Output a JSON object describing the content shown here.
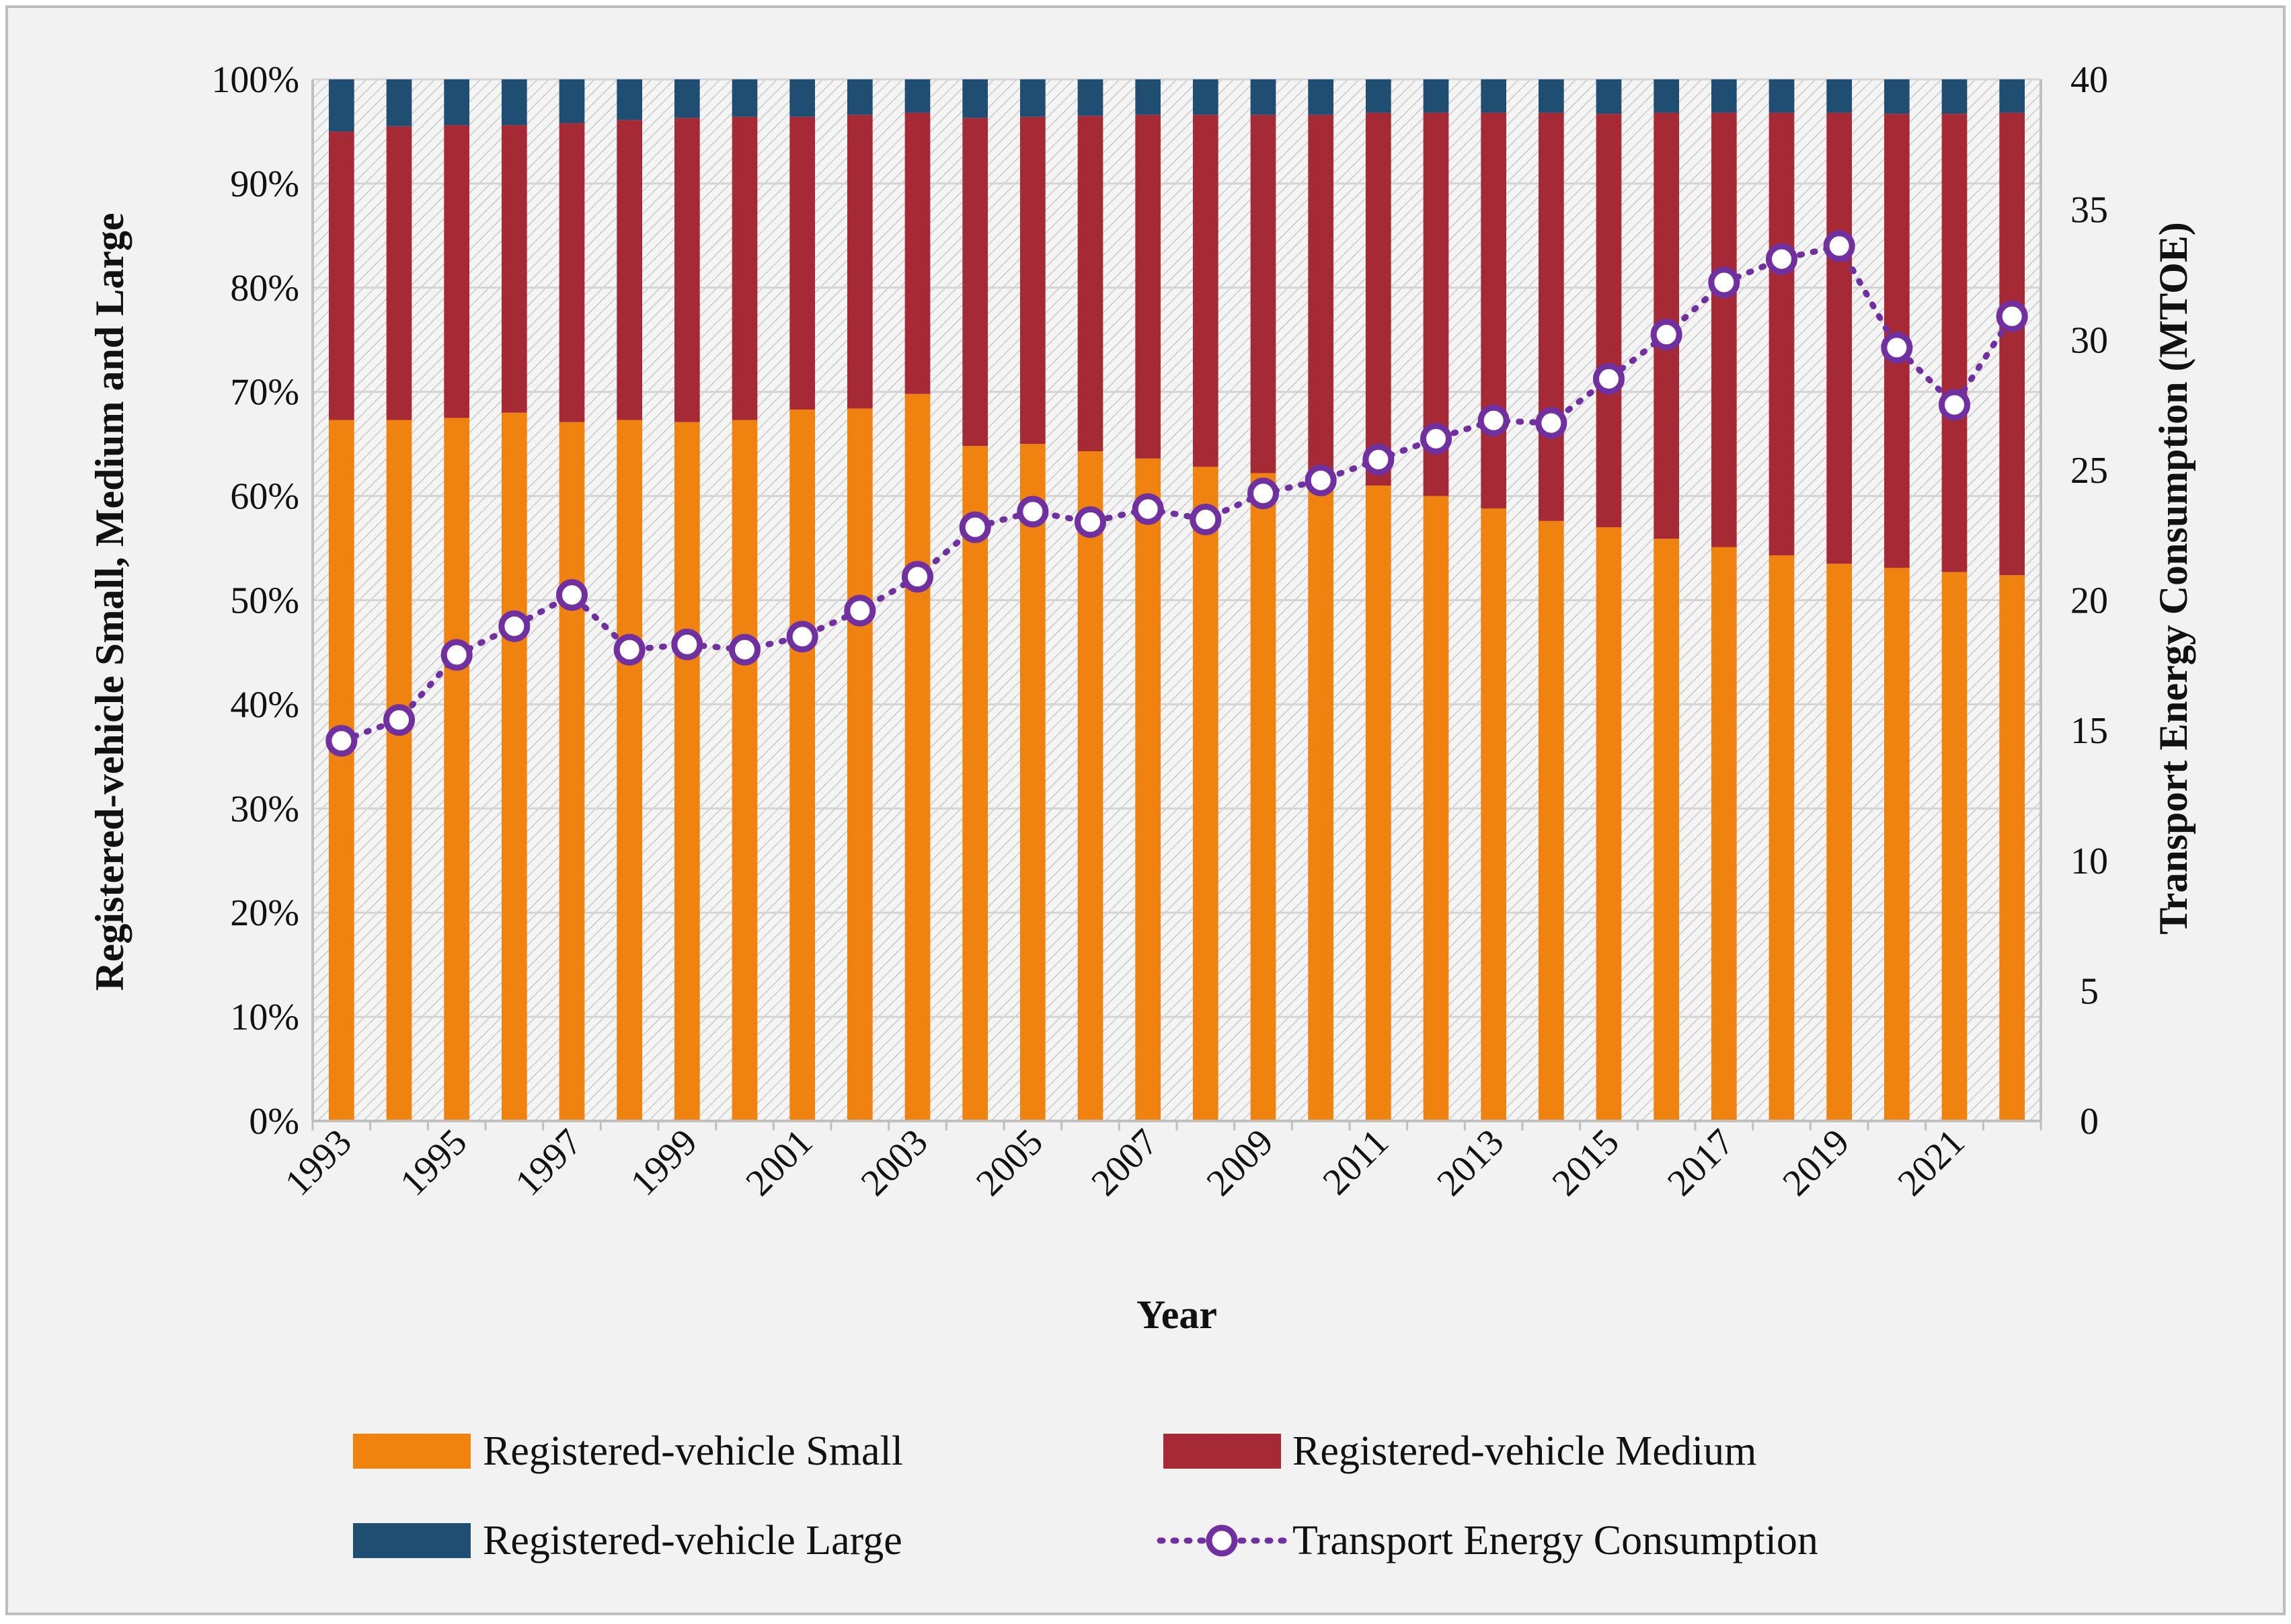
{
  "chart_data": {
    "type": "bar",
    "stacked": true,
    "title": "",
    "xlabel": "Year",
    "ylabel": "Registered-vehicle Small, Medium and Large",
    "y2label": "Transport Energy Consumption (MTOE)",
    "ylim": [
      0,
      100
    ],
    "y2lim": [
      0,
      40
    ],
    "y_ticks": [
      "0%",
      "10%",
      "20%",
      "30%",
      "40%",
      "50%",
      "60%",
      "70%",
      "80%",
      "90%",
      "100%"
    ],
    "y2_ticks": [
      "0",
      "5",
      "10",
      "15",
      "20",
      "25",
      "30",
      "35",
      "40"
    ],
    "x_tick_labels": [
      "1993",
      "1995",
      "1997",
      "1999",
      "2001",
      "2003",
      "2005",
      "2007",
      "2009",
      "2011",
      "2013",
      "2015",
      "2017",
      "2019",
      "2021"
    ],
    "categories": [
      "1993",
      "1994",
      "1995",
      "1996",
      "1997",
      "1998",
      "1999",
      "2000",
      "2001",
      "2002",
      "2003",
      "2004",
      "2005",
      "2006",
      "2007",
      "2008",
      "2009",
      "2010",
      "2011",
      "2012",
      "2013",
      "2014",
      "2015",
      "2016",
      "2017",
      "2018",
      "2019",
      "2020",
      "2021",
      "2022"
    ],
    "series": [
      {
        "name": "Registered-vehicle Small",
        "axis": "left",
        "kind": "bar",
        "color": "#F0820F",
        "values": [
          67.3,
          67.3,
          67.5,
          68.0,
          67.1,
          67.3,
          67.1,
          67.3,
          68.3,
          68.4,
          69.8,
          64.8,
          65.0,
          64.3,
          63.6,
          62.8,
          62.2,
          61.5,
          61.0,
          60.0,
          58.8,
          57.6,
          57.0,
          55.9,
          55.1,
          54.3,
          53.5,
          53.1,
          52.7,
          52.4
        ]
      },
      {
        "name": "Registered-vehicle Medium",
        "axis": "left",
        "kind": "bar",
        "color": "#A52A35",
        "values": [
          27.7,
          28.2,
          28.1,
          27.6,
          28.7,
          28.8,
          29.2,
          29.1,
          28.1,
          28.2,
          27.0,
          31.5,
          31.4,
          32.2,
          33.0,
          33.8,
          34.4,
          35.1,
          35.8,
          36.8,
          38.0,
          39.2,
          39.7,
          40.9,
          41.7,
          42.5,
          43.3,
          43.6,
          44.0,
          44.4
        ]
      },
      {
        "name": "Registered-vehicle Large",
        "axis": "left",
        "kind": "bar",
        "color": "#1F4E72",
        "values": [
          5.0,
          4.5,
          4.4,
          4.4,
          4.2,
          3.9,
          3.7,
          3.6,
          3.6,
          3.4,
          3.2,
          3.7,
          3.6,
          3.5,
          3.4,
          3.4,
          3.4,
          3.4,
          3.2,
          3.2,
          3.2,
          3.2,
          3.3,
          3.2,
          3.2,
          3.2,
          3.2,
          3.3,
          3.3,
          3.2
        ]
      },
      {
        "name": "Transport Energy Consumption",
        "axis": "right",
        "kind": "line",
        "color": "#7030A0",
        "values": [
          14.6,
          15.4,
          17.9,
          19.0,
          20.2,
          18.1,
          18.3,
          18.1,
          18.6,
          19.6,
          20.9,
          22.8,
          23.4,
          23.0,
          23.5,
          23.1,
          24.1,
          24.6,
          25.4,
          26.2,
          26.9,
          26.8,
          28.5,
          30.2,
          32.2,
          33.1,
          33.6,
          29.7,
          27.5,
          30.9
        ]
      }
    ],
    "legend": {
      "position": "bottom",
      "entries": [
        "Registered-vehicle Small",
        "Registered-vehicle Medium",
        "Registered-vehicle Large",
        "Transport Energy Consumption"
      ]
    }
  }
}
